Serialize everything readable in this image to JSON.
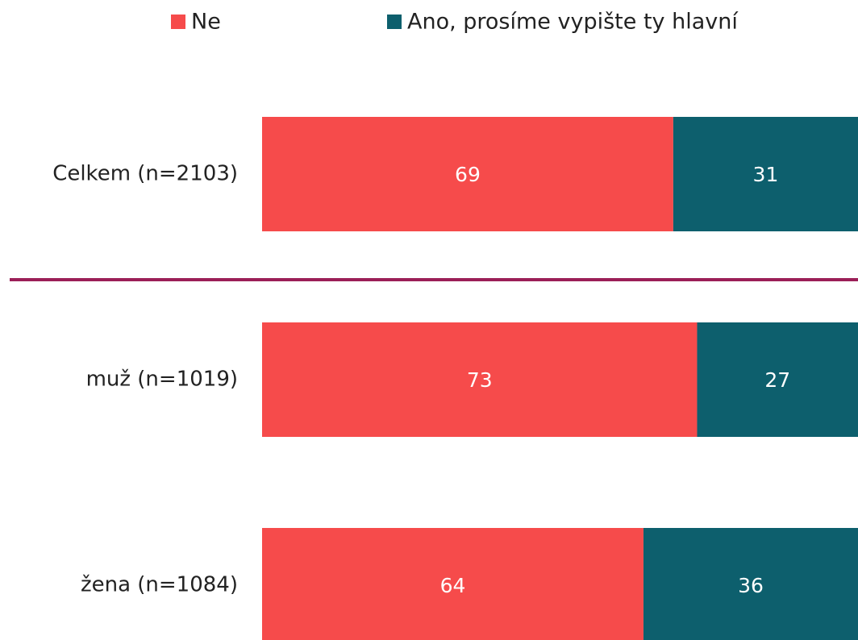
{
  "chart_data": {
    "type": "bar",
    "orientation": "horizontal",
    "stacked": true,
    "categories": [
      "Celkem (n=2103)",
      "muž (n=1019)",
      "žena (n=1084)"
    ],
    "series": [
      {
        "name": "Ne",
        "color": "#f64b4b",
        "values": [
          69,
          73,
          64
        ]
      },
      {
        "name": "Ano, prosíme vypište ty hlavní",
        "color": "#0d5f6d",
        "values": [
          31,
          27,
          36
        ]
      }
    ],
    "xlim": [
      0,
      100
    ]
  }
}
